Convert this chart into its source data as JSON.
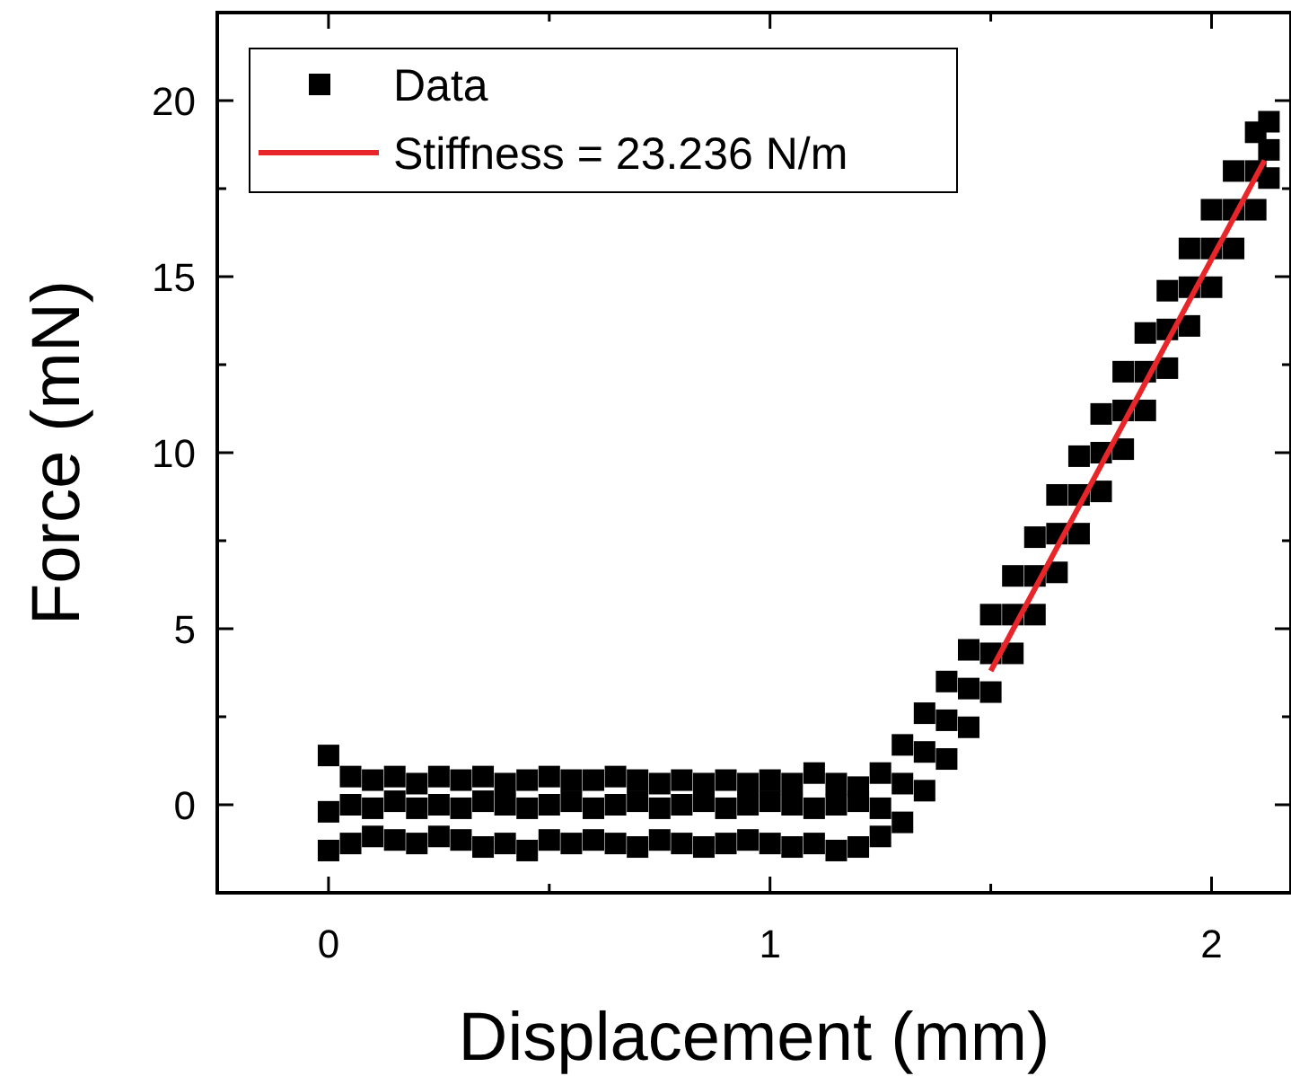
{
  "chart_data": {
    "type": "scatter",
    "xlabel": "Displacement (mm)",
    "ylabel": "Force (mN)",
    "xlim": [
      -0.252,
      2.18
    ],
    "ylim": [
      -2.5,
      22.5
    ],
    "xticks": [
      0,
      {
        "value": 0.5,
        "label": null
      },
      1,
      {
        "value": 1.5,
        "label": null
      },
      2
    ],
    "yticks": [
      0,
      {
        "value": 2.5,
        "label": null
      },
      5,
      {
        "value": 7.5,
        "label": null
      },
      10,
      {
        "value": 12.5,
        "label": null
      },
      15,
      {
        "value": 17.5,
        "label": null
      },
      20
    ],
    "legend": "top left",
    "grid": false,
    "series": [
      {
        "name": "Data",
        "marker": "square",
        "color": "#000000",
        "x": [
          0,
          0.05,
          0.1,
          0.15,
          0.2,
          0.25,
          0.3,
          0.35,
          0.4,
          0.45,
          0.5,
          0.55,
          0.6,
          0.65,
          0.7,
          0.75,
          0.8,
          0.85,
          0.9,
          0.95,
          1,
          1.05,
          1.1,
          1.15,
          1.2,
          1.25,
          1.3,
          1.35,
          1.4,
          1.45,
          1.5,
          1.55,
          1.6,
          1.65,
          1.7,
          1.75,
          1.8,
          1.85,
          1.9,
          1.95,
          2,
          2.05,
          2.1,
          2.13,
          0,
          0.05,
          0.1,
          0.15,
          0.2,
          0.25,
          0.3,
          0.35,
          0.4,
          0.45,
          0.5,
          0.55,
          0.6,
          0.65,
          0.7,
          0.75,
          0.8,
          0.85,
          0.9,
          0.95,
          1,
          1.05,
          1.1,
          1.15,
          1.2,
          1.25,
          1.3,
          1.35,
          1.4,
          1.45,
          1.5,
          1.55,
          1.6,
          1.65,
          1.7,
          1.75,
          1.8,
          1.85,
          1.9,
          1.95,
          2,
          2.05,
          2.1,
          2.13,
          0,
          0.05,
          0.1,
          0.15,
          0.2,
          0.25,
          0.3,
          0.35,
          0.4,
          0.45,
          0.5,
          0.55,
          0.6,
          0.65,
          0.7,
          0.75,
          0.8,
          0.85,
          0.9,
          0.95,
          1,
          1.05,
          1.1,
          1.15,
          1.2,
          1.25,
          1.3,
          1.35,
          1.4,
          1.45,
          1.5,
          1.55,
          1.6,
          1.65,
          1.7,
          1.75,
          1.8,
          1.85,
          1.9,
          1.95,
          2,
          2.05,
          2.1,
          2.13
        ],
        "values": [
          1.4,
          0.8,
          0.7,
          0.8,
          0.6,
          0.8,
          0.7,
          0.8,
          0.6,
          0.7,
          0.8,
          0.7,
          0.7,
          0.8,
          0.7,
          0.6,
          0.7,
          0.6,
          0.7,
          0.6,
          0.7,
          0.6,
          0.9,
          0.6,
          0.5,
          0.9,
          1.7,
          2.6,
          3.5,
          4.4,
          5.4,
          6.5,
          7.6,
          8.8,
          9.9,
          11.1,
          12.3,
          13.4,
          14.6,
          15.8,
          16.9,
          18,
          19.1,
          19.4,
          -0.2,
          0,
          -0.1,
          0.1,
          -0.1,
          0,
          -0.1,
          0.1,
          0,
          -0.1,
          0,
          0.1,
          -0.1,
          0,
          0.1,
          -0.1,
          0,
          0.1,
          -0.1,
          0,
          0.1,
          0,
          -0.1,
          0,
          0.1,
          -0.1,
          0.6,
          1.5,
          2.4,
          3.3,
          4.3,
          5.4,
          6.5,
          7.7,
          8.8,
          10,
          11.2,
          12.3,
          13.5,
          14.7,
          15.8,
          16.9,
          18,
          18.6,
          -1.3,
          -1.1,
          -0.9,
          -1,
          -1.1,
          -0.9,
          -1,
          -1.2,
          -1.1,
          -1.3,
          -1,
          -1.1,
          -1,
          -1.1,
          -1.2,
          -1,
          -1.1,
          -1.2,
          -1.1,
          -1,
          -1.1,
          -1.2,
          -1.1,
          -1.3,
          -1.2,
          -0.9,
          -0.5,
          0.4,
          1.3,
          2.2,
          3.2,
          4.3,
          5.4,
          6.6,
          7.7,
          8.9,
          10.1,
          11.2,
          12.4,
          13.6,
          14.7,
          15.8,
          16.9,
          17.8
        ]
      },
      {
        "name": "Stiffness = 23.236 N/m",
        "type": "line",
        "marker": "none",
        "line_style": "solid",
        "color": "#e8262a",
        "x": [
          1.5,
          2.12
        ],
        "values": [
          3.8,
          18.3
        ]
      }
    ]
  }
}
